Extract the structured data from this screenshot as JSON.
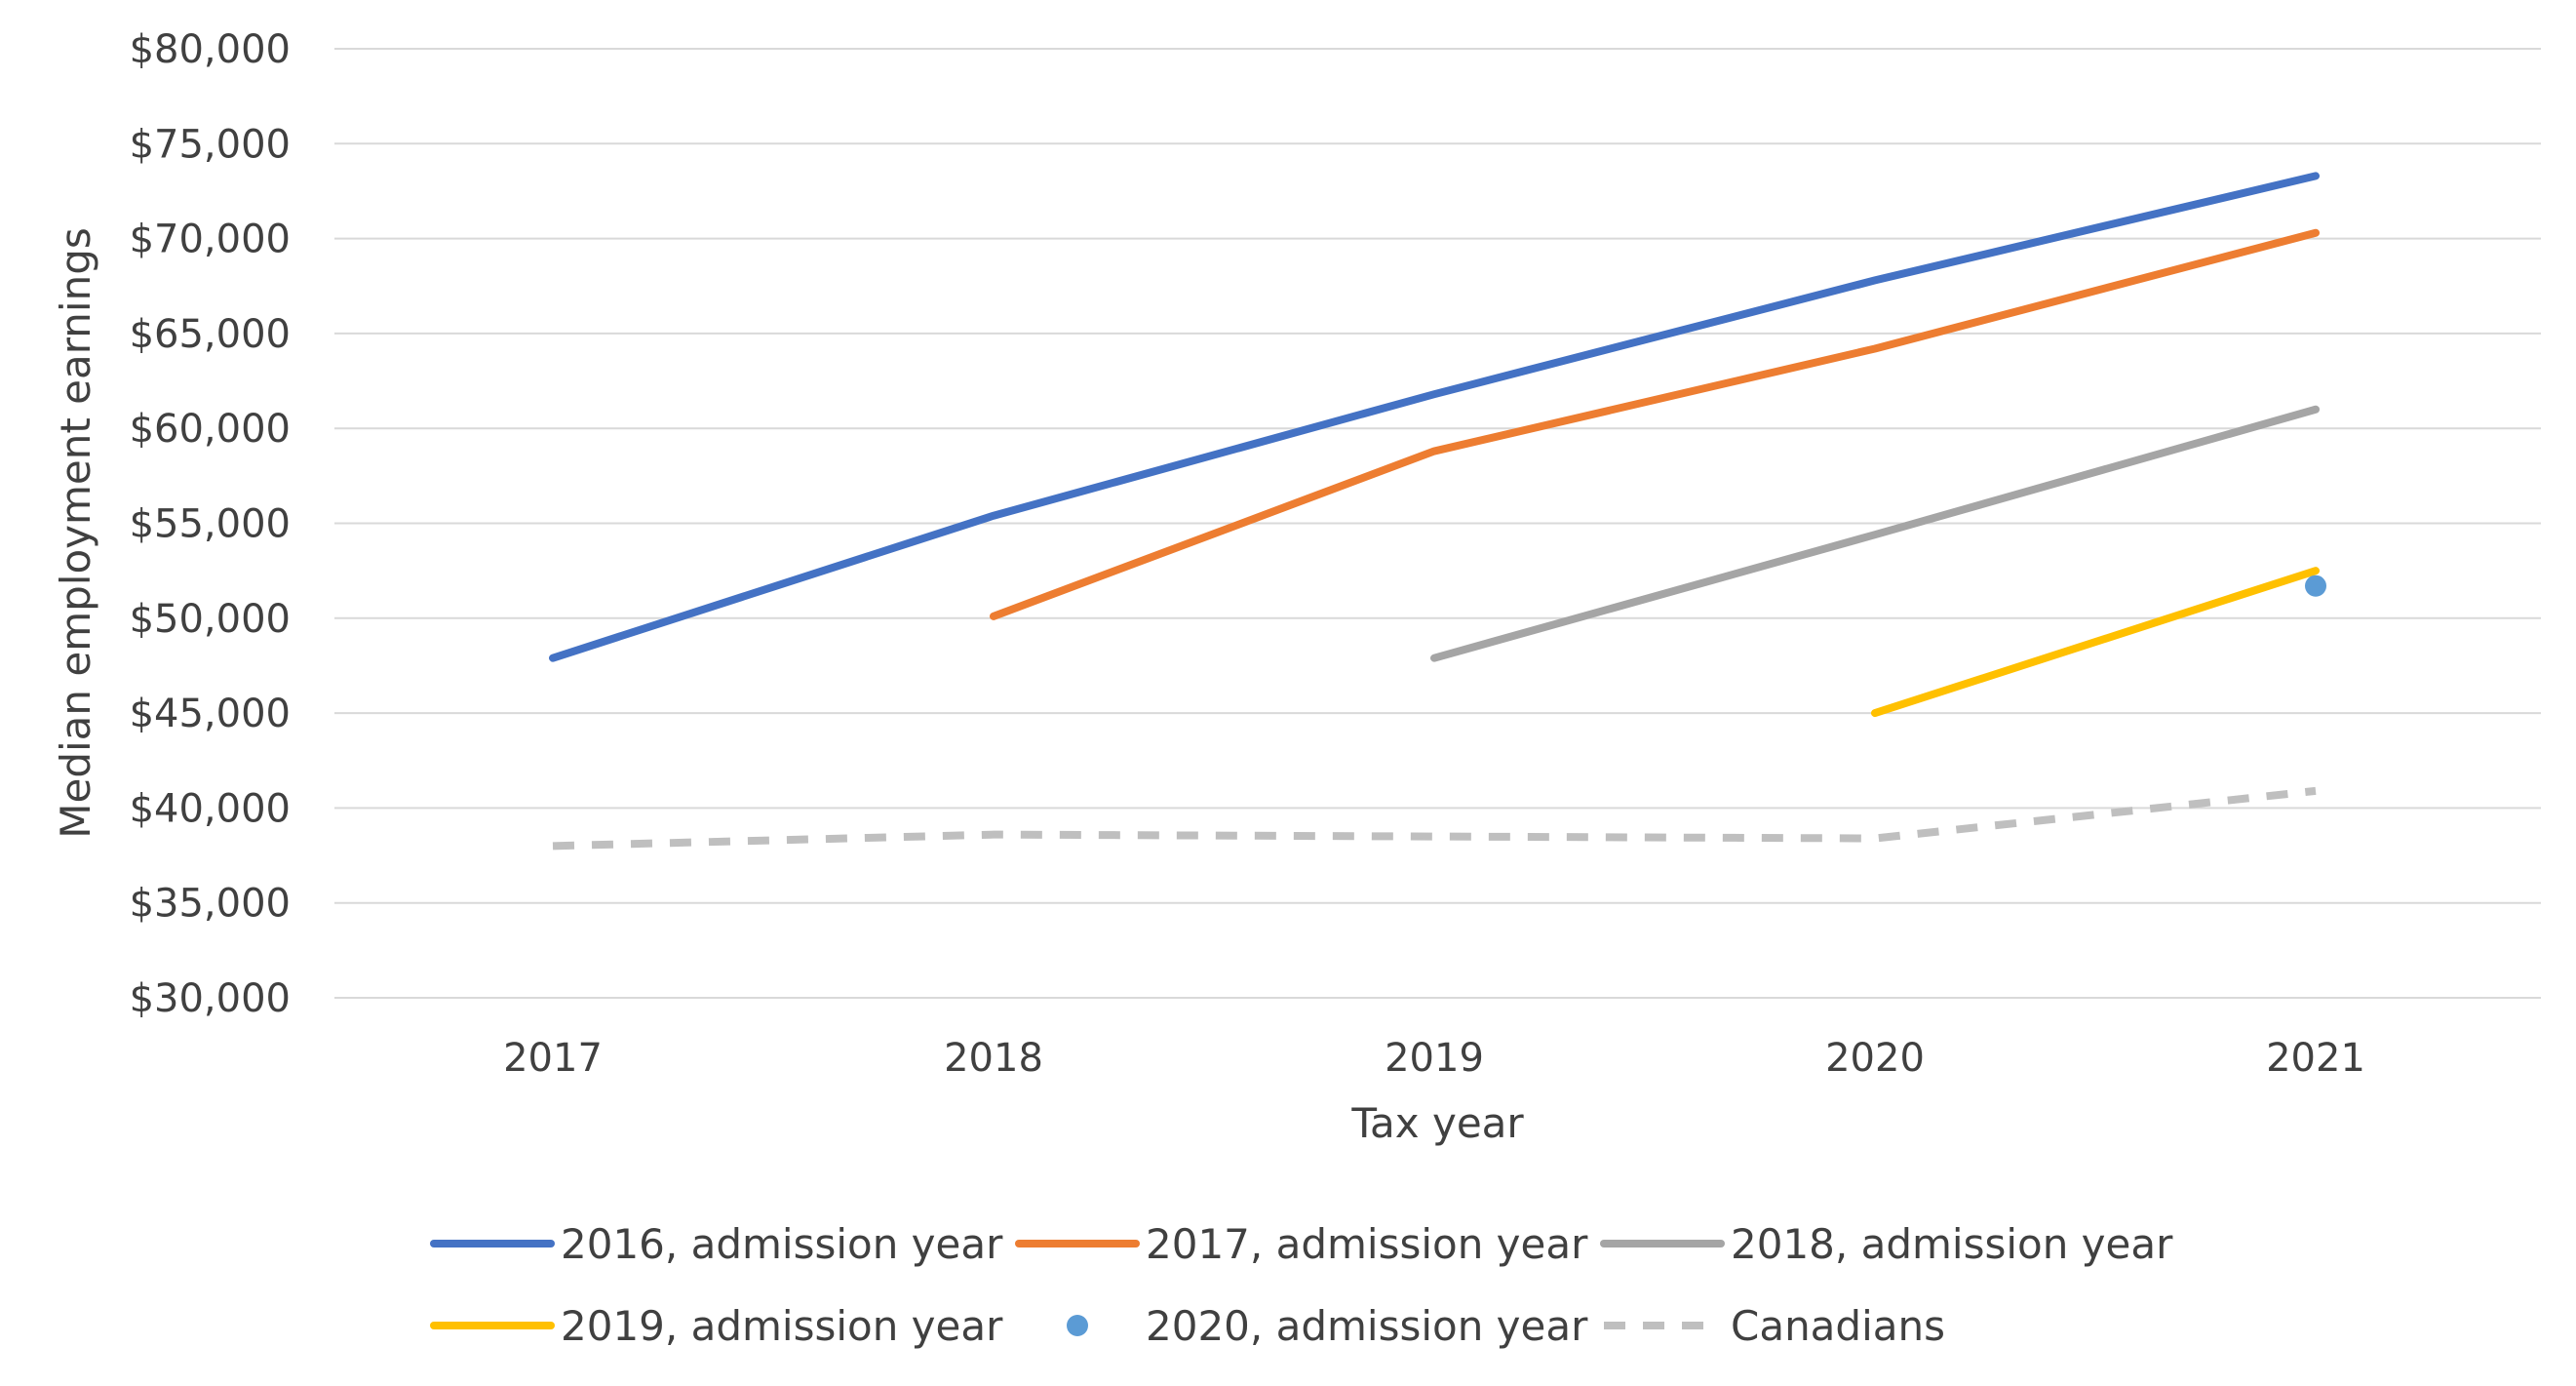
{
  "chart_data": {
    "type": "line",
    "title": "",
    "xlabel": "Tax year",
    "ylabel": "Median employment earnings",
    "categories": [
      "2017",
      "2018",
      "2019",
      "2020",
      "2021"
    ],
    "ylim": [
      30000,
      80000
    ],
    "ytick_values": [
      30000,
      35000,
      40000,
      45000,
      50000,
      55000,
      60000,
      65000,
      70000,
      75000,
      80000
    ],
    "ytick_labels": [
      "$30,000",
      "$35,000",
      "$40,000",
      "$45,000",
      "$50,000",
      "$55,000",
      "$60,000",
      "$65,000",
      "$70,000",
      "$75,000",
      "$80,000"
    ],
    "grid": true,
    "legend_position": "bottom",
    "series": [
      {
        "id": "s2016",
        "name": "2016, admission year",
        "color": "#4472C4",
        "style": "solid",
        "values": [
          47900,
          55400,
          61800,
          67800,
          73300
        ]
      },
      {
        "id": "s2017",
        "name": "2017, admission year",
        "color": "#ED7D31",
        "style": "solid",
        "values": [
          null,
          50100,
          58800,
          64200,
          70300
        ]
      },
      {
        "id": "s2018",
        "name": "2018, admission year",
        "color": "#A5A5A5",
        "style": "solid",
        "values": [
          null,
          null,
          47900,
          54400,
          61000
        ]
      },
      {
        "id": "s2019",
        "name": "2019, admission year",
        "color": "#FFC000",
        "style": "solid",
        "values": [
          null,
          null,
          null,
          45000,
          52500
        ]
      },
      {
        "id": "s2020",
        "name": "2020, admission year",
        "color": "#5B9BD5",
        "style": "marker",
        "values": [
          null,
          null,
          null,
          null,
          51700
        ]
      },
      {
        "id": "canadians",
        "name": "Canadians",
        "color": "#BFBFBF",
        "style": "dashed",
        "values": [
          38000,
          38600,
          38500,
          38400,
          40900
        ]
      }
    ]
  }
}
